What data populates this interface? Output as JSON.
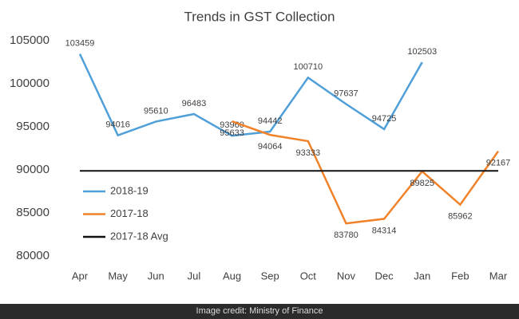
{
  "chart_data": {
    "type": "line",
    "title": "Trends in GST Collection",
    "categories": [
      "Apr",
      "May",
      "Jun",
      "Jul",
      "Aug",
      "Sep",
      "Oct",
      "Nov",
      "Dec",
      "Jan",
      "Feb",
      "Mar"
    ],
    "series": [
      {
        "name": "2018-19",
        "color": "#4f9fd8",
        "data_labels": true,
        "values": [
          103459,
          94016,
          95610,
          96483,
          93960,
          94442,
          100710,
          97637,
          94725,
          102503,
          null,
          null
        ]
      },
      {
        "name": "2017-18",
        "color": "#f0822a",
        "data_labels": true,
        "values": [
          null,
          null,
          null,
          null,
          95633,
          94064,
          93333,
          83780,
          84314,
          89825,
          85962,
          92167
        ]
      },
      {
        "name": "2017-18 Avg",
        "color": "#111111",
        "data_labels": false,
        "values": [
          89885,
          89885,
          89885,
          89885,
          89885,
          89885,
          89885,
          89885,
          89885,
          89885,
          89885,
          89885
        ]
      }
    ],
    "ylim": [
      80000,
      105000
    ],
    "yticks": [
      80000,
      85000,
      90000,
      95000,
      100000,
      105000
    ],
    "grid": false,
    "legend": "left"
  },
  "footer": "Image credit: Ministry of Finance"
}
